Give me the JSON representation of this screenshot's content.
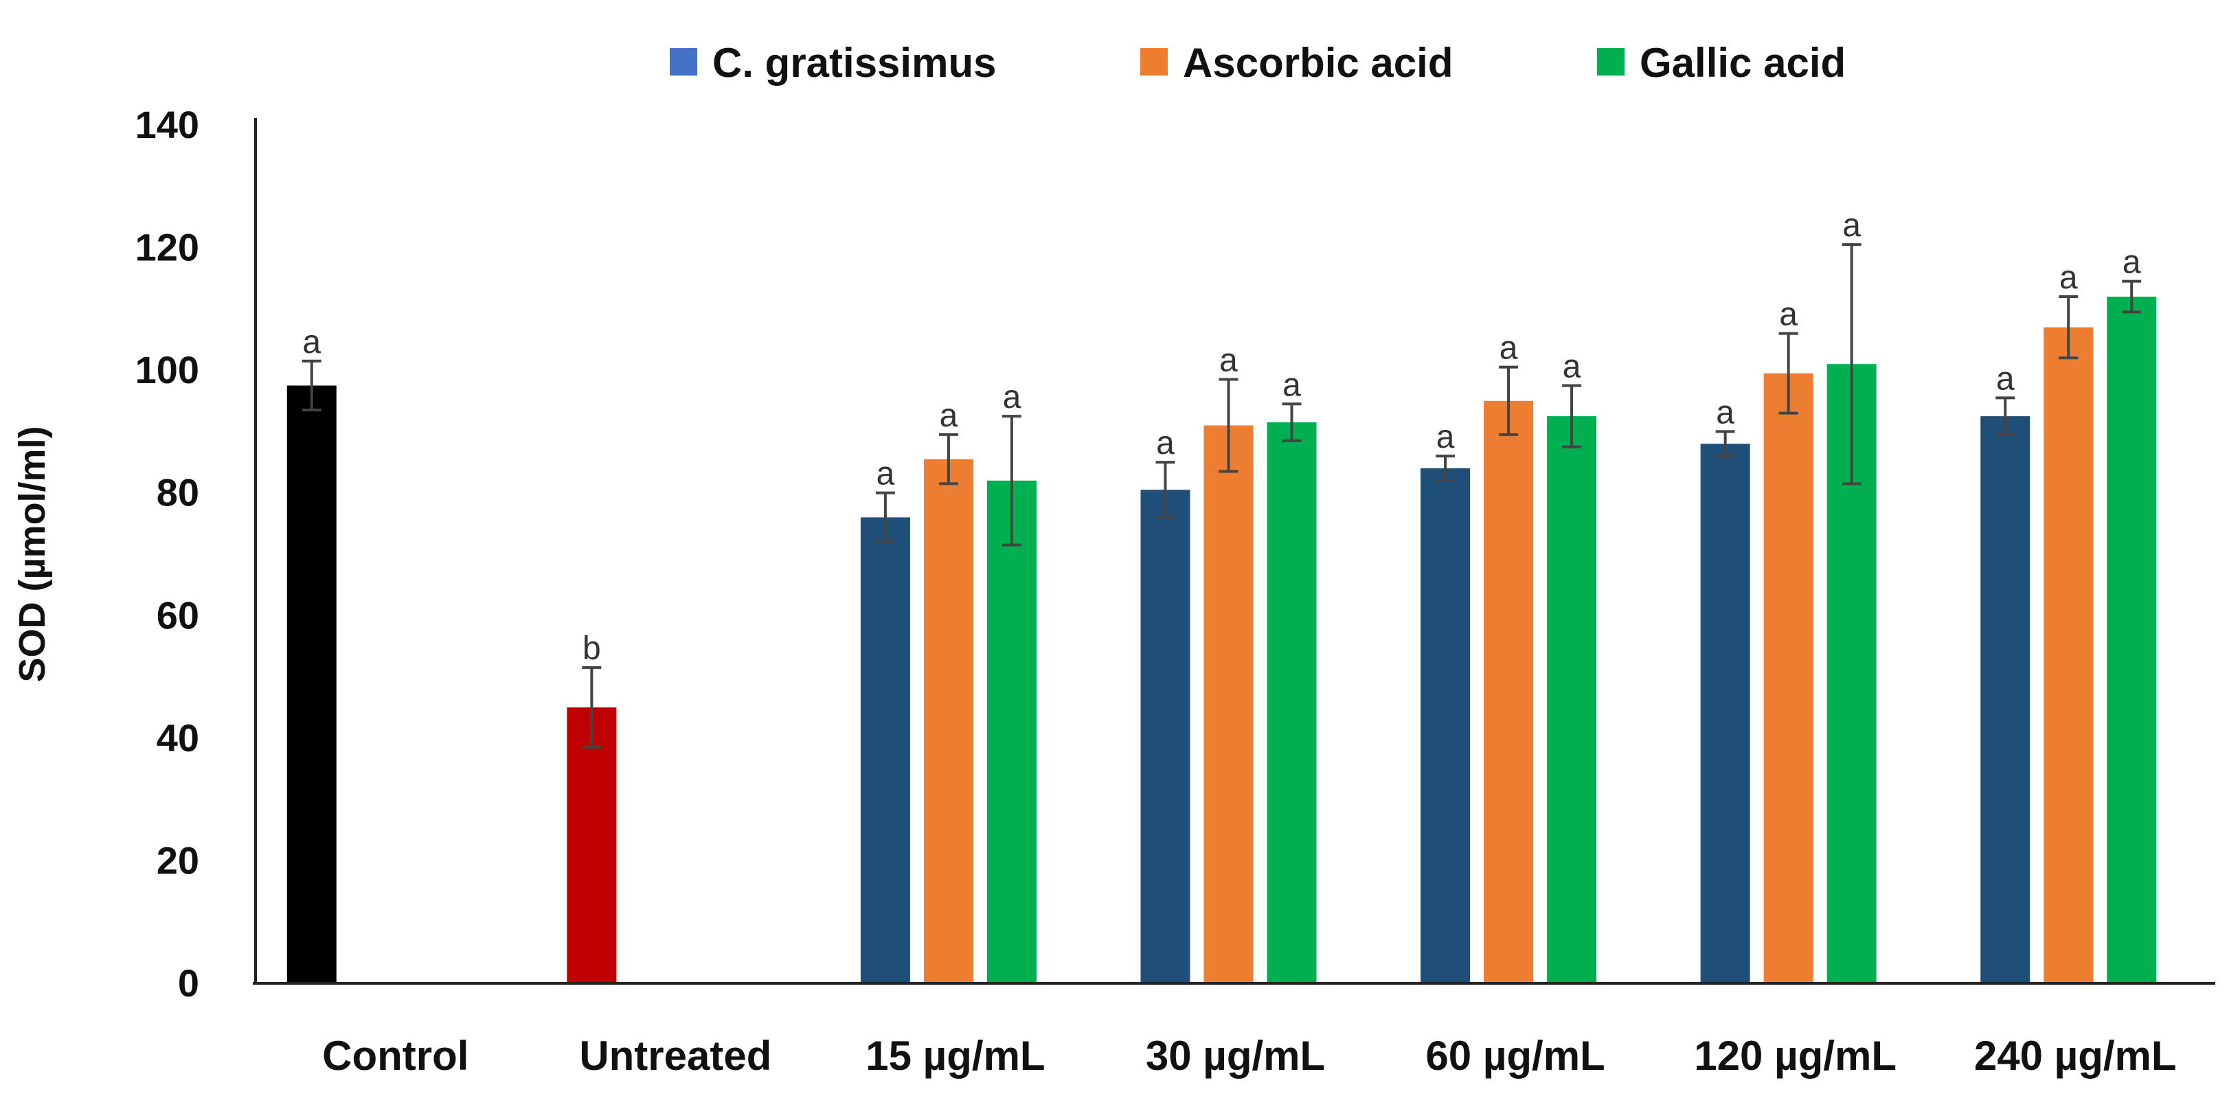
{
  "chart_data": {
    "type": "bar",
    "title": "",
    "xlabel": "",
    "ylabel": "SOD  (µmol/ml)",
    "ylim": [
      0,
      140
    ],
    "yticks": [
      0,
      20,
      40,
      60,
      80,
      100,
      120,
      140
    ],
    "grid": false,
    "legend_position": "top",
    "categories": [
      "Control",
      "Untreated",
      "15 µg/mL",
      "30 µg/mL",
      "60 µg/mL",
      "120 µg/mL",
      "240 µg/mL"
    ],
    "single_bars": [
      {
        "category": "Control",
        "value": 97.5,
        "error": 4,
        "label": "a",
        "color": "#000000"
      },
      {
        "category": "Untreated",
        "value": 45,
        "error": 6.5,
        "label": "b",
        "color": "#c00000"
      }
    ],
    "series": [
      {
        "name": "C. gratissimus",
        "color": "#1f4e79",
        "legend_color": "#4472c4",
        "values": [
          null,
          null,
          76,
          80.5,
          84,
          88,
          92.5
        ],
        "errors": [
          null,
          null,
          4,
          4.5,
          2,
          2,
          3
        ],
        "labels": [
          null,
          null,
          "a",
          "a",
          "a",
          "a",
          "a"
        ]
      },
      {
        "name": "Ascorbic acid",
        "color": "#ed7d31",
        "legend_color": "#ed7d31",
        "values": [
          null,
          null,
          85.5,
          91,
          95,
          99.5,
          107
        ],
        "errors": [
          null,
          null,
          4,
          7.5,
          5.5,
          6.5,
          5
        ],
        "labels": [
          null,
          null,
          "a",
          "a",
          "a",
          "a",
          "a"
        ]
      },
      {
        "name": "Gallic acid",
        "color": "#00b050",
        "legend_color": "#00b050",
        "values": [
          null,
          null,
          82,
          91.5,
          92.5,
          101,
          112
        ],
        "errors": [
          null,
          null,
          10.5,
          3,
          5,
          19.5,
          2.5
        ],
        "labels": [
          null,
          null,
          "a",
          "a",
          "a",
          "a",
          "a"
        ]
      }
    ]
  }
}
